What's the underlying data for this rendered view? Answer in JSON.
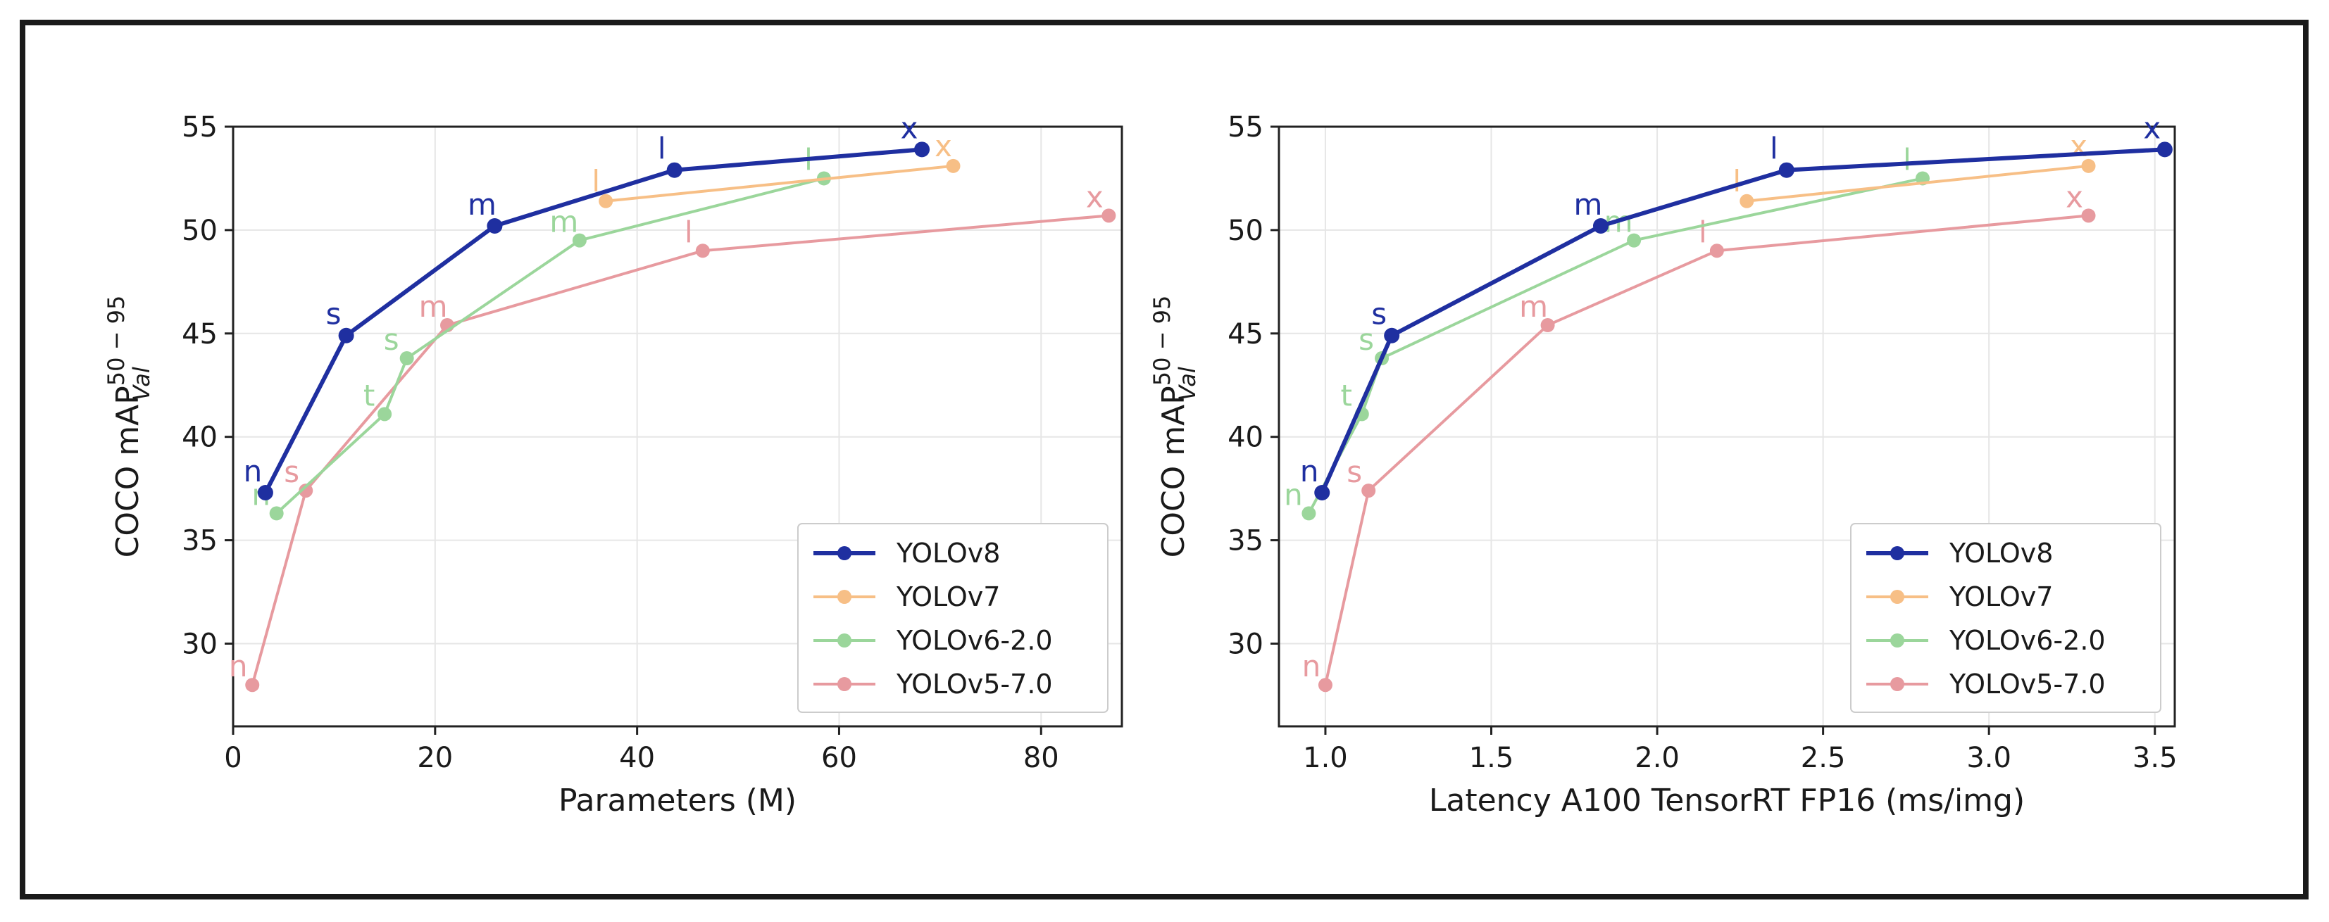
{
  "chart_data": [
    {
      "type": "line",
      "title": "",
      "xlabel": "Parameters (M)",
      "ylabel": {
        "base": "COCO mAP",
        "sup": "50 − 95",
        "sub": "Val"
      },
      "xlim": [
        0,
        88
      ],
      "ylim": [
        26,
        55
      ],
      "xticks": [
        0,
        20,
        40,
        60,
        80
      ],
      "xtick_labels": [
        "0",
        "20",
        "40",
        "60",
        "80"
      ],
      "yticks": [
        30,
        35,
        40,
        45,
        50,
        55
      ],
      "ytick_labels": [
        "30",
        "35",
        "40",
        "45",
        "50",
        "55"
      ],
      "grid": true,
      "legend_position": "lower-right",
      "series": [
        {
          "name": "YOLOv8",
          "color": "#1f2fa0",
          "bold": true,
          "labels": [
            "n",
            "s",
            "m",
            "l",
            "x"
          ],
          "x": [
            3.2,
            11.2,
            25.9,
            43.7,
            68.2
          ],
          "y": [
            37.3,
            44.9,
            50.2,
            52.9,
            53.9
          ]
        },
        {
          "name": "YOLOv7",
          "color": "#f7bf86",
          "bold": false,
          "labels": [
            "l",
            "x"
          ],
          "x": [
            36.9,
            71.3
          ],
          "y": [
            51.4,
            53.1
          ]
        },
        {
          "name": "YOLOv6-2.0",
          "color": "#9bd69b",
          "bold": false,
          "labels": [
            "n",
            "t",
            "s",
            "m",
            "l"
          ],
          "x": [
            4.3,
            15.0,
            17.2,
            34.3,
            58.5
          ],
          "y": [
            36.3,
            41.1,
            43.8,
            49.5,
            52.5
          ]
        },
        {
          "name": "YOLOv5-7.0",
          "color": "#e79a9f",
          "bold": false,
          "labels": [
            "n",
            "s",
            "m",
            "l",
            "x"
          ],
          "x": [
            1.9,
            7.2,
            21.2,
            46.5,
            86.7
          ],
          "y": [
            28.0,
            37.4,
            45.4,
            49.0,
            50.7
          ]
        }
      ]
    },
    {
      "type": "line",
      "title": "",
      "xlabel": "Latency A100 TensorRT FP16 (ms/img)",
      "ylabel": {
        "base": "COCO mAP",
        "sup": "50 − 95",
        "sub": "Val"
      },
      "xlim": [
        0.86,
        3.56
      ],
      "ylim": [
        26,
        55
      ],
      "xticks": [
        1.0,
        1.5,
        2.0,
        2.5,
        3.0,
        3.5
      ],
      "xtick_labels": [
        "1.0",
        "1.5",
        "2.0",
        "2.5",
        "3.0",
        "3.5"
      ],
      "yticks": [
        30,
        35,
        40,
        45,
        50,
        55
      ],
      "ytick_labels": [
        "30",
        "35",
        "40",
        "45",
        "50",
        "55"
      ],
      "grid": true,
      "legend_position": "lower-right",
      "series": [
        {
          "name": "YOLOv8",
          "color": "#1f2fa0",
          "bold": true,
          "labels": [
            "n",
            "s",
            "m",
            "l",
            "x"
          ],
          "x": [
            0.99,
            1.2,
            1.83,
            2.39,
            3.53
          ],
          "y": [
            37.3,
            44.9,
            50.2,
            52.9,
            53.9
          ]
        },
        {
          "name": "YOLOv7",
          "color": "#f7bf86",
          "bold": false,
          "labels": [
            "l",
            "x"
          ],
          "x": [
            2.27,
            3.3
          ],
          "y": [
            51.4,
            53.1
          ]
        },
        {
          "name": "YOLOv6-2.0",
          "color": "#9bd69b",
          "bold": false,
          "labels": [
            "n",
            "t",
            "s",
            "m",
            "l"
          ],
          "x": [
            0.95,
            1.11,
            1.17,
            1.93,
            2.8
          ],
          "y": [
            36.3,
            41.1,
            43.8,
            49.5,
            52.5
          ]
        },
        {
          "name": "YOLOv5-7.0",
          "color": "#e79a9f",
          "bold": false,
          "labels": [
            "n",
            "s",
            "m",
            "l",
            "x"
          ],
          "x": [
            1.0,
            1.13,
            1.67,
            2.18,
            3.3
          ],
          "y": [
            28.0,
            37.4,
            45.4,
            49.0,
            50.7
          ]
        }
      ]
    }
  ]
}
